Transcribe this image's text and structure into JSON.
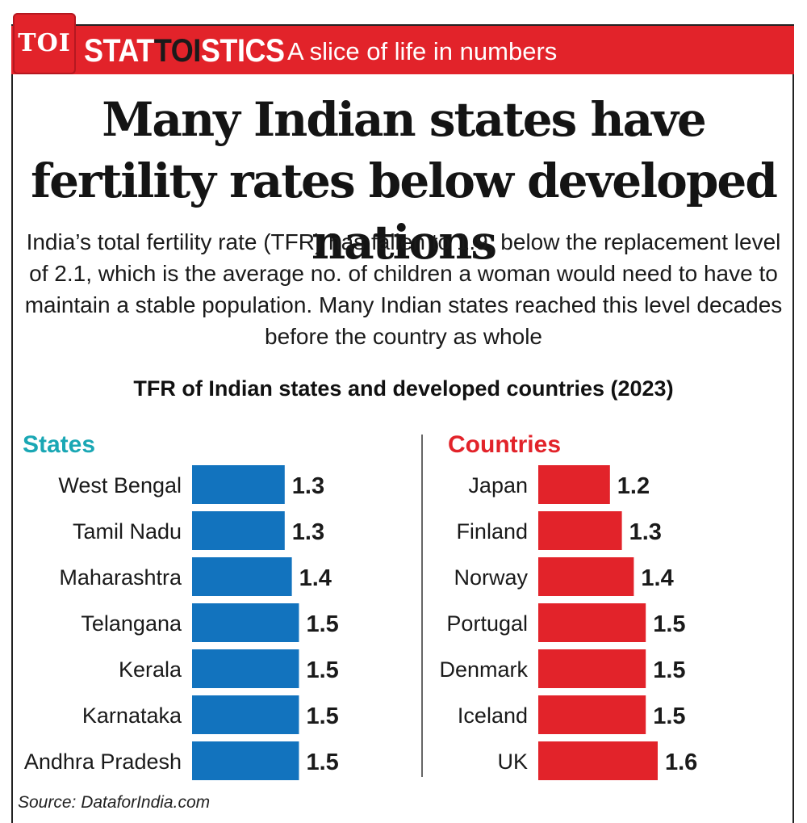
{
  "header": {
    "logo": "TOI",
    "brand_part1": "STAT",
    "brand_part2": "TOI",
    "brand_part3": "STICS",
    "tagline": "A slice of life in numbers"
  },
  "headline": "Many Indian states have fertility rates below developed nations",
  "subtitle": "India’s total fertility rate (TFR) has fallen to 1.9, below the replacement level of 2.1, which is the average no. of children a woman would need to have to maintain a stable population. Many Indian states reached this level decades before the country as whole",
  "source": "Source: DataforIndia.com",
  "colors": {
    "states": "#1273be",
    "countries": "#e2232a",
    "states_heading": "#1aa7b4",
    "countries_heading": "#e2232a"
  },
  "chart_data": [
    {
      "type": "bar",
      "orientation": "horizontal",
      "title": "TFR of Indian states and developed countries (2023)",
      "panel_label": "States",
      "categories": [
        "West Bengal",
        "Tamil Nadu",
        "Maharashtra",
        "Telangana",
        "Kerala",
        "Karnataka",
        "Andhra Pradesh"
      ],
      "values": [
        1.3,
        1.3,
        1.4,
        1.5,
        1.5,
        1.5,
        1.5
      ],
      "value_labels": [
        "1.3",
        "1.3",
        "1.4",
        "1.5",
        "1.5",
        "1.5",
        "1.5"
      ]
    },
    {
      "type": "bar",
      "orientation": "horizontal",
      "title": "TFR of Indian states and developed countries (2023)",
      "panel_label": "Countries",
      "categories": [
        "Japan",
        "Finland",
        "Norway",
        "Portugal",
        "Denmark",
        "Iceland",
        "UK"
      ],
      "values": [
        1.2,
        1.3,
        1.4,
        1.5,
        1.5,
        1.5,
        1.6
      ],
      "value_labels": [
        "1.2",
        "1.3",
        "1.4",
        "1.5",
        "1.5",
        "1.5",
        "1.6"
      ]
    }
  ]
}
